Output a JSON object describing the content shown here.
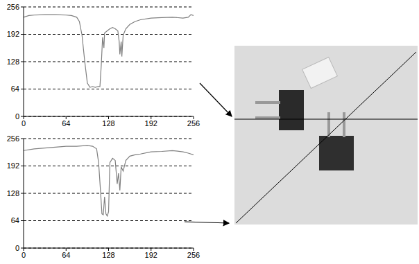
{
  "chart_data": [
    {
      "type": "line",
      "color": "#808080",
      "grid": true,
      "xlim": [
        0,
        256
      ],
      "ylim": [
        0,
        256
      ],
      "xticks": [
        0,
        64,
        128,
        192,
        256
      ],
      "yticks": [
        0,
        64,
        128,
        192,
        256
      ],
      "x": [
        0,
        8,
        16,
        32,
        48,
        64,
        72,
        80,
        84,
        88,
        92,
        96,
        100,
        104,
        108,
        112,
        115,
        117,
        119,
        121,
        122,
        126,
        130,
        134,
        138,
        142,
        144,
        145,
        147,
        148,
        150,
        154,
        160,
        168,
        176,
        192,
        208,
        224,
        240,
        248,
        252,
        256
      ],
      "values": [
        232,
        236,
        237,
        238,
        238,
        237,
        236,
        232,
        222,
        190,
        130,
        78,
        68,
        70,
        68,
        70,
        70,
        120,
        185,
        160,
        195,
        200,
        205,
        208,
        205,
        200,
        175,
        145,
        175,
        140,
        190,
        205,
        215,
        222,
        226,
        230,
        231,
        232,
        230,
        232,
        238,
        236
      ]
    },
    {
      "type": "line",
      "color": "#808080",
      "grid": true,
      "xlim": [
        0,
        256
      ],
      "ylim": [
        0,
        256
      ],
      "xticks": [
        0,
        64,
        128,
        192,
        256
      ],
      "yticks": [
        0,
        64,
        128,
        192,
        256
      ],
      "x": [
        0,
        16,
        32,
        48,
        64,
        80,
        96,
        104,
        110,
        113,
        116,
        118,
        120,
        122,
        124,
        126,
        128,
        130,
        134,
        138,
        141,
        143,
        145,
        147,
        150,
        154,
        160,
        168,
        176,
        192,
        208,
        224,
        240,
        248,
        256
      ],
      "values": [
        228,
        232,
        234,
        236,
        238,
        238,
        240,
        238,
        232,
        200,
        130,
        80,
        78,
        120,
        80,
        75,
        85,
        200,
        210,
        205,
        150,
        175,
        135,
        190,
        180,
        205,
        215,
        218,
        220,
        225,
        226,
        228,
        225,
        222,
        218
      ]
    }
  ]
}
